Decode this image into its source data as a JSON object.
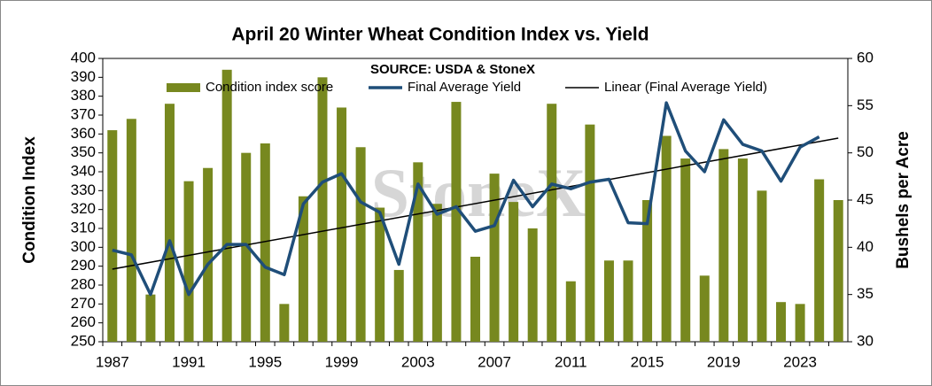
{
  "chart_data": {
    "type": "bar_line",
    "title": "April 20 Winter Wheat Condition Index vs. Yield",
    "subtitle": "SOURCE: USDA & StoneX",
    "watermark": "StoneX",
    "y_label": "Condition Index",
    "y2_label": "Bushels per Acre",
    "categories": [
      "1987",
      null,
      null,
      null,
      "1991",
      null,
      null,
      null,
      "1995",
      null,
      null,
      null,
      "1999",
      null,
      null,
      null,
      "2003",
      null,
      null,
      null,
      "2007",
      null,
      null,
      null,
      "2011",
      null,
      null,
      null,
      "2015",
      null,
      null,
      null,
      "2019",
      null,
      null,
      null,
      "2023",
      null,
      null
    ],
    "series": [
      {
        "name": "Condition index score",
        "type": "bar",
        "color": "#77881f",
        "values": [
          362,
          368,
          275,
          376,
          335,
          342,
          394,
          350,
          355,
          270,
          327,
          390,
          374,
          353,
          321,
          288,
          345,
          323,
          377,
          295,
          339,
          324,
          310,
          376,
          282,
          365,
          293,
          293,
          325,
          359,
          347,
          285,
          352,
          347,
          330,
          271,
          270,
          336,
          325
        ]
      },
      {
        "name": "Final Average Yield",
        "type": "line",
        "axis": "y2",
        "color": "#1f4e79",
        "values": [
          39.7,
          39.2,
          35.0,
          40.7,
          35.0,
          38.2,
          40.3,
          40.3,
          37.9,
          37.1,
          44.6,
          46.9,
          47.8,
          44.8,
          43.7,
          38.2,
          46.7,
          43.5,
          44.3,
          41.7,
          42.3,
          47.1,
          44.3,
          46.7,
          46.2,
          46.9,
          47.2,
          42.6,
          42.5,
          55.3,
          50.2,
          48.0,
          53.5,
          50.9,
          50.2,
          47.0,
          50.6,
          51.7,
          null
        ]
      },
      {
        "name": "Linear (Final Average Yield)",
        "type": "trend",
        "color": "#000000"
      }
    ],
    "ylim": [
      250,
      400
    ],
    "yticks": [
      250,
      260,
      270,
      280,
      290,
      300,
      310,
      320,
      330,
      340,
      350,
      360,
      370,
      380,
      390,
      400
    ],
    "y2lim": [
      30,
      60
    ],
    "y2ticks": [
      30,
      35,
      40,
      45,
      50,
      55,
      60
    ],
    "grid": false,
    "legend": "top"
  }
}
